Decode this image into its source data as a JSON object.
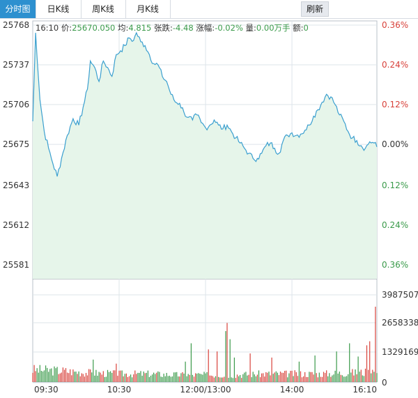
{
  "tabs": [
    {
      "label": "分时图",
      "active": true
    },
    {
      "label": "日K线",
      "active": false
    },
    {
      "label": "周K线",
      "active": false
    },
    {
      "label": "月K线",
      "active": false
    }
  ],
  "refresh_label": "刷新",
  "info": {
    "time": "16:10",
    "price_label": "价:",
    "price_value": "25670.050",
    "avg_label": "均:",
    "avg_value": "4.815",
    "change_label": "张跌:",
    "change_value": "-4.48",
    "pct_label": "涨幅:",
    "pct_value": "-0.02%",
    "vol_label": "量:",
    "vol_value": "0.00万手",
    "amt_label": "额:",
    "amt_value": "0"
  },
  "colors": {
    "line": "#3a9fcf",
    "area": "#e6f5ea",
    "up": "#d8413a",
    "down": "#3a9a4a",
    "grid": "#dde4ea",
    "axis_text": "#333333",
    "tab_active": "#2d90cf"
  },
  "chart_data": {
    "type": "line",
    "title": "",
    "grid": true,
    "price_ticks": [
      "25768",
      "25737",
      "25706",
      "25675",
      "25643",
      "25612",
      "25581"
    ],
    "pct_ticks": [
      {
        "label": "0.36%",
        "dir": "up"
      },
      {
        "label": "0.24%",
        "dir": "up"
      },
      {
        "label": "0.12%",
        "dir": "up"
      },
      {
        "label": "0.00%",
        "dir": "flat"
      },
      {
        "label": "0.12%",
        "dir": "down"
      },
      {
        "label": "0.24%",
        "dir": "down"
      },
      {
        "label": "0.36%",
        "dir": "down"
      }
    ],
    "ylim": [
      25581,
      25768
    ],
    "prev_close": 25675,
    "volume_ticks": [
      "3987507",
      "2658338",
      "1329169",
      "0"
    ],
    "volume_max": 3987507,
    "time_labels": [
      "09:30",
      "10:30",
      "12:00/13:00",
      "14:00",
      "16:10"
    ],
    "n_points": 240,
    "x_range": [
      "09:30",
      "16:10"
    ],
    "price_keypoints": [
      [
        0,
        25693
      ],
      [
        2,
        25762
      ],
      [
        5,
        25710
      ],
      [
        8,
        25685
      ],
      [
        11,
        25672
      ],
      [
        14,
        25660
      ],
      [
        17,
        25650
      ],
      [
        20,
        25664
      ],
      [
        24,
        25682
      ],
      [
        28,
        25695
      ],
      [
        32,
        25690
      ],
      [
        35,
        25704
      ],
      [
        38,
        25718
      ],
      [
        40,
        25740
      ],
      [
        43,
        25735
      ],
      [
        46,
        25724
      ],
      [
        49,
        25740
      ],
      [
        52,
        25735
      ],
      [
        55,
        25728
      ],
      [
        58,
        25745
      ],
      [
        61,
        25748
      ],
      [
        64,
        25752
      ],
      [
        67,
        25758
      ],
      [
        70,
        25756
      ],
      [
        72,
        25762
      ],
      [
        75,
        25755
      ],
      [
        78,
        25752
      ],
      [
        81,
        25745
      ],
      [
        84,
        25738
      ],
      [
        87,
        25737
      ],
      [
        90,
        25728
      ],
      [
        93,
        25724
      ],
      [
        96,
        25714
      ],
      [
        99,
        25708
      ],
      [
        102,
        25707
      ],
      [
        105,
        25700
      ],
      [
        108,
        25696
      ],
      [
        111,
        25694
      ],
      [
        114,
        25698
      ],
      [
        117,
        25692
      ],
      [
        120,
        25688
      ],
      [
        123,
        25690
      ],
      [
        126,
        25694
      ],
      [
        129,
        25690
      ],
      [
        132,
        25687
      ],
      [
        135,
        25690
      ],
      [
        138,
        25685
      ],
      [
        141,
        25680
      ],
      [
        144,
        25676
      ],
      [
        147,
        25672
      ],
      [
        150,
        25668
      ],
      [
        153,
        25664
      ],
      [
        156,
        25664
      ],
      [
        159,
        25668
      ],
      [
        162,
        25674
      ],
      [
        165,
        25676
      ],
      [
        168,
        25672
      ],
      [
        171,
        25668
      ],
      [
        174,
        25678
      ],
      [
        177,
        25682
      ],
      [
        180,
        25684
      ],
      [
        183,
        25682
      ],
      [
        186,
        25683
      ],
      [
        189,
        25686
      ],
      [
        192,
        25690
      ],
      [
        195,
        25697
      ],
      [
        198,
        25702
      ],
      [
        201,
        25708
      ],
      [
        204,
        25714
      ],
      [
        207,
        25712
      ],
      [
        210,
        25706
      ],
      [
        213,
        25698
      ],
      [
        216,
        25693
      ],
      [
        219,
        25685
      ],
      [
        222,
        25680
      ],
      [
        225,
        25678
      ],
      [
        228,
        25674
      ],
      [
        231,
        25672
      ],
      [
        234,
        25677
      ],
      [
        237,
        25676
      ],
      [
        239,
        25673
      ]
    ],
    "volume_keypoints": [
      [
        0,
        0.12
      ],
      [
        20,
        0.11
      ],
      [
        40,
        0.09
      ],
      [
        60,
        0.08
      ],
      [
        80,
        0.08
      ],
      [
        100,
        0.07
      ],
      [
        120,
        0.07
      ],
      [
        140,
        0.07
      ],
      [
        160,
        0.08
      ],
      [
        180,
        0.08
      ],
      [
        200,
        0.08
      ],
      [
        220,
        0.09
      ],
      [
        239,
        0.1
      ]
    ],
    "volume_spikes": [
      [
        42,
        0.22
      ],
      [
        58,
        0.18
      ],
      [
        106,
        0.2
      ],
      [
        110,
        0.38
      ],
      [
        122,
        0.32
      ],
      [
        128,
        0.3
      ],
      [
        134,
        0.5
      ],
      [
        135,
        0.58
      ],
      [
        137,
        0.42
      ],
      [
        140,
        0.24
      ],
      [
        151,
        0.28
      ],
      [
        166,
        0.24
      ],
      [
        185,
        0.2
      ],
      [
        196,
        0.26
      ],
      [
        211,
        0.3
      ],
      [
        220,
        0.38
      ],
      [
        226,
        0.25
      ],
      [
        232,
        0.36
      ],
      [
        234,
        0.4
      ],
      [
        236,
        0.12
      ],
      [
        238,
        0.74
      ]
    ]
  }
}
